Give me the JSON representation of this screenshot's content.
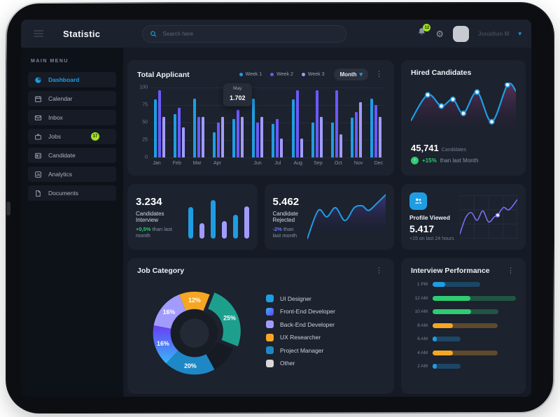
{
  "topbar": {
    "title": "Statistic",
    "search_placeholder": "Search here",
    "notification_count": "12",
    "user_name": "Jonathan M"
  },
  "sidebar": {
    "section_label": "MAIN MENU",
    "items": [
      {
        "label": "Dashboard",
        "icon": "dashboard-icon",
        "active": true
      },
      {
        "label": "Calendar",
        "icon": "calendar-icon"
      },
      {
        "label": "Inbox",
        "icon": "mail-icon"
      },
      {
        "label": "Jobs",
        "icon": "briefcase-icon",
        "badge": "17"
      },
      {
        "label": "Candidate",
        "icon": "id-card-icon"
      },
      {
        "label": "Analytics",
        "icon": "analytics-icon"
      },
      {
        "label": "Documents",
        "icon": "document-icon"
      }
    ]
  },
  "chart_data": [
    {
      "id": "total_applicant",
      "type": "bar",
      "title": "Total Applicant",
      "dropdown_label": "Month",
      "legend": [
        {
          "name": "Week 1",
          "color": "#1e9de3"
        },
        {
          "name": "Week 2",
          "color": "#6a5af9"
        },
        {
          "name": "Week 3",
          "color": "#a29bfe"
        }
      ],
      "tooltip": {
        "label": "May",
        "value": "1.702"
      },
      "y_ticks": [
        100,
        75,
        50,
        25,
        0
      ],
      "ylim": [
        0,
        100
      ],
      "x_labels": [
        "Jan",
        "Feb",
        "Mar",
        "Apr",
        "May",
        "Jun",
        "Jul",
        "Aug",
        "Sep",
        "Oct",
        "Nov",
        "Dec"
      ],
      "x_label_display": [
        "Jan",
        "Feb",
        "Mar",
        "Apr",
        "",
        "Jun",
        "Jul",
        "Aug",
        "Sep",
        "Oct",
        "Nov",
        "Dec"
      ],
      "series": [
        {
          "name": "Week 1",
          "color": "#1e9de3",
          "values": [
            83,
            62,
            84,
            36,
            55,
            84,
            48,
            83,
            50,
            50,
            57,
            84
          ]
        },
        {
          "name": "Week 2",
          "color": "#6a5af9",
          "values": [
            96,
            71,
            58,
            50,
            68,
            50,
            55,
            96,
            96,
            96,
            65,
            75
          ]
        },
        {
          "name": "Week 3",
          "color": "#a29bfe",
          "values": [
            58,
            43,
            58,
            58,
            58,
            58,
            27,
            27,
            58,
            33,
            79,
            58
          ]
        }
      ]
    },
    {
      "id": "hired_candidates",
      "type": "line",
      "title": "Hired Candidates",
      "value": "45,741",
      "value_label": "Candidates",
      "delta": "+15%",
      "delta_suffix": "than last Month",
      "color": "#1e9de3",
      "points": [
        [
          0,
          68
        ],
        [
          16,
          22
        ],
        [
          29,
          42
        ],
        [
          40,
          30
        ],
        [
          50,
          55
        ],
        [
          63,
          17
        ],
        [
          77,
          70
        ],
        [
          92,
          4
        ],
        [
          100,
          15
        ]
      ],
      "dot_indices": [
        1,
        2,
        3,
        4,
        5,
        6,
        7
      ]
    },
    {
      "id": "candidates_interview",
      "type": "bar",
      "value": "3.234",
      "label": "Candidates Interview",
      "delta": "+0,5%",
      "delta_suffix": "than last month",
      "values": [
        72,
        36,
        88,
        40,
        55,
        75
      ],
      "bar_colors": [
        "#1e9de3",
        "#a29bfe",
        "#1e9de3",
        "#a29bfe",
        "#1e9de3",
        "#a29bfe"
      ]
    },
    {
      "id": "candidate_rejected",
      "type": "line",
      "value": "5.462",
      "label": "Candidate Rejected",
      "delta": "-2%",
      "delta_suffix": "than last month",
      "color": "#1e9de3",
      "points": [
        [
          0,
          97
        ],
        [
          14,
          36
        ],
        [
          25,
          50
        ],
        [
          36,
          30
        ],
        [
          48,
          58
        ],
        [
          60,
          30
        ],
        [
          70,
          26
        ],
        [
          78,
          36
        ],
        [
          88,
          22
        ],
        [
          100,
          2
        ]
      ]
    },
    {
      "id": "profile_viewed",
      "type": "line",
      "title": "Profile Viewed",
      "value": "5.417",
      "sub": "+15 on last 24 hours",
      "color": "#7e6bf2",
      "points": [
        [
          0,
          90
        ],
        [
          10,
          52
        ],
        [
          20,
          40
        ],
        [
          30,
          58
        ],
        [
          40,
          36
        ],
        [
          50,
          62
        ],
        [
          60,
          50
        ],
        [
          66,
          46
        ],
        [
          76,
          28
        ],
        [
          86,
          33
        ],
        [
          100,
          10
        ]
      ],
      "dot_index": 7
    },
    {
      "id": "job_category",
      "type": "pie",
      "title": "Job Category",
      "start_angle_deg": -21.6,
      "slices": [
        {
          "text": "12%",
          "pct": 12,
          "color": "#f5a623"
        },
        {
          "text": "25%",
          "pct": 25,
          "color": "#1d9f8e",
          "exploded": true
        },
        {
          "text": "",
          "pct": 11,
          "color": "#151a23"
        },
        {
          "text": "20%",
          "pct": 20,
          "color": "#1e88c7"
        },
        {
          "text": "16%",
          "pct": 16,
          "color": "gradient-blue-purple"
        },
        {
          "text": "16%",
          "pct": 16,
          "color": "#a29bfe"
        }
      ],
      "legend": [
        {
          "label": "UI Designer",
          "color": "#1e9de3"
        },
        {
          "label": "Front-End Developer",
          "color": "gradient-blue-purple"
        },
        {
          "label": "Back-End Developer",
          "color": "#a29bfe"
        },
        {
          "label": "UX Researcher",
          "color": "#f5a623"
        },
        {
          "label": "Project Manager",
          "color": "#1e88c7"
        },
        {
          "label": "Other",
          "color": "#d8d8d8"
        }
      ]
    },
    {
      "id": "interview_performance",
      "type": "bar",
      "orientation": "horizontal",
      "title": "Interview Performance",
      "rows": [
        {
          "label": "1 PM",
          "color": "#1e9de3",
          "bright": 15,
          "total": 57
        },
        {
          "label": "12 AM",
          "color": "#2ecc71",
          "bright": 45,
          "total": 100
        },
        {
          "label": "10 AM",
          "color": "#2ecc71",
          "bright": 46,
          "total": 79
        },
        {
          "label": "8 AM",
          "color": "#f5a623",
          "bright": 24,
          "total": 78
        },
        {
          "label": "6 AM",
          "color": "#1e9de3",
          "bright": 5,
          "total": 34
        },
        {
          "label": "4 AM",
          "color": "#f5a623",
          "bright": 24,
          "total": 78
        },
        {
          "label": "2 AM",
          "color": "#1e9de3",
          "bright": 5,
          "total": 34
        }
      ]
    }
  ]
}
